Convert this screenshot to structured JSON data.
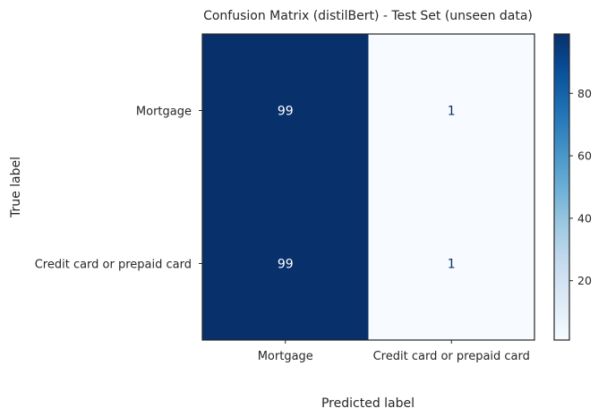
{
  "chart_data": {
    "type": "heatmap",
    "title": "Confusion Matrix (distilBert) - Test Set (unseen data)",
    "xlabel": "Predicted label",
    "ylabel": "True label",
    "x_categories": [
      "Mortgage",
      "Credit card or prepaid card"
    ],
    "y_categories": [
      "Mortgage",
      "Credit card or prepaid card"
    ],
    "values": [
      [
        99,
        1
      ],
      [
        99,
        1
      ]
    ],
    "colormap": "Blues",
    "colorbar": {
      "range": [
        1,
        99
      ],
      "ticks": [
        20,
        40,
        60,
        80
      ]
    },
    "grid": false
  },
  "colors": {
    "cmap_low": "#f7fbff",
    "cmap_high": "#08306b",
    "text_dark": "#08306b",
    "text_light": "#ffffff"
  }
}
